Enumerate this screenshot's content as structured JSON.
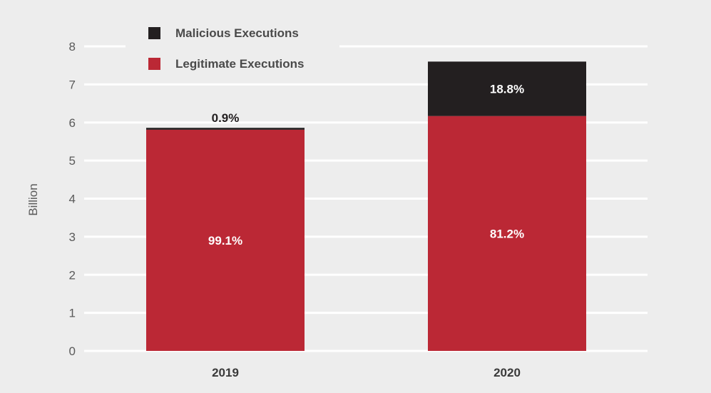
{
  "chart_data": {
    "type": "bar",
    "stacked": true,
    "categories": [
      "2019",
      "2020"
    ],
    "ylabel": "Billion",
    "ylim": [
      0,
      8
    ],
    "yticks": [
      0,
      1,
      2,
      3,
      4,
      5,
      6,
      7,
      8
    ],
    "grid": true,
    "legend_position": "top-left",
    "series": [
      {
        "name": "Legitimate Executions",
        "color": "#bb2835",
        "values": [
          5.81,
          6.17
        ],
        "labels": [
          "99.1%",
          "81.2%"
        ]
      },
      {
        "name": "Malicious Executions",
        "color": "#231f20",
        "values": [
          0.05,
          1.43
        ],
        "labels": [
          "0.9%",
          "18.8%"
        ]
      }
    ]
  }
}
